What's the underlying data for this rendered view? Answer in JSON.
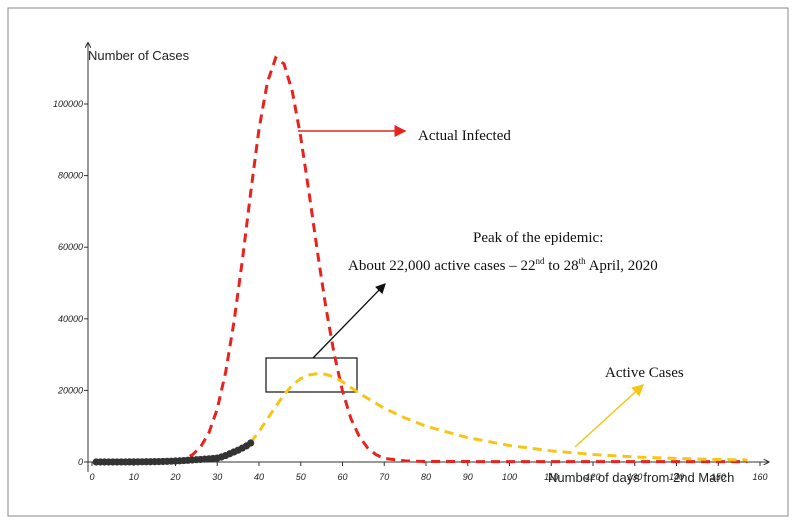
{
  "chart_data": {
    "type": "line",
    "y_label": "Number of Cases",
    "x_label": "Number of days from 2nd March",
    "xlim": [
      0,
      162
    ],
    "ylim": [
      0,
      117000
    ],
    "xticks": [
      0,
      10,
      20,
      30,
      40,
      50,
      60,
      70,
      80,
      90,
      100,
      110,
      120,
      130,
      140,
      150,
      160
    ],
    "yticks": [
      0,
      20000,
      40000,
      60000,
      80000,
      100000
    ],
    "series": [
      {
        "name": "Actual Infected",
        "color": "#e8231e",
        "style": "dashed",
        "x": [
          20,
          22,
          24,
          26,
          28,
          30,
          32,
          34,
          36,
          38,
          40,
          42,
          44,
          46,
          48,
          50,
          52,
          54,
          56,
          58,
          60,
          62,
          64,
          66,
          68,
          70,
          75,
          80,
          100,
          130,
          157
        ],
        "values": [
          400,
          860,
          1970,
          4170,
          8150,
          14800,
          25000,
          39100,
          56200,
          75200,
          93000,
          106000,
          112900,
          111200,
          103400,
          90700,
          75100,
          58700,
          43300,
          30200,
          19800,
          12200,
          7150,
          3960,
          2070,
          1010,
          300,
          150,
          100,
          100,
          100
        ]
      },
      {
        "name": "Active Cases",
        "color": "#f5c518",
        "style": "dashed",
        "x": [
          38,
          40,
          42,
          44,
          46,
          48,
          50,
          52,
          54,
          56,
          58,
          60,
          62,
          65,
          70,
          75,
          80,
          90,
          100,
          110,
          120,
          130,
          140,
          150,
          157
        ],
        "values": [
          5500,
          8500,
          12000,
          15500,
          18800,
          21500,
          23300,
          24300,
          24700,
          24500,
          23700,
          22400,
          20800,
          18500,
          15000,
          12300,
          10000,
          6800,
          4600,
          3100,
          2100,
          1400,
          1000,
          700,
          550
        ]
      },
      {
        "color": "#333333",
        "style": "markers",
        "x": [
          1,
          2,
          3,
          4,
          5,
          6,
          7,
          8,
          9,
          10,
          11,
          12,
          13,
          14,
          15,
          16,
          17,
          18,
          19,
          20,
          21,
          22,
          23,
          24,
          25,
          26,
          27,
          28,
          29,
          30,
          31,
          32,
          33,
          34,
          35,
          36,
          37,
          38
        ],
        "values": [
          0,
          0,
          5,
          5,
          10,
          10,
          15,
          20,
          25,
          30,
          40,
          50,
          60,
          80,
          100,
          120,
          150,
          180,
          220,
          270,
          330,
          400,
          480,
          560,
          640,
          720,
          800,
          880,
          970,
          1100,
          1400,
          1800,
          2300,
          2800,
          3300,
          3900,
          4500,
          5300
        ]
      }
    ],
    "annotations": {
      "peak_title": "Peak of the epidemic:",
      "peak_text": [
        "About 22,000 active cases – 22",
        "nd",
        " to 28",
        "th",
        " April, 2020"
      ]
    }
  }
}
